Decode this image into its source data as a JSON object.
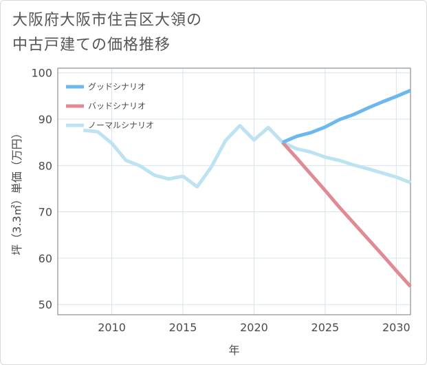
{
  "title": [
    "大阪府大阪市住吉区大領の",
    "中古戸建ての価格推移"
  ],
  "chart_data": {
    "type": "line",
    "xlabel": "年",
    "ylabel": "坪（3.3㎡）単価（万円）",
    "xlim": [
      2006.2,
      2031.0
    ],
    "ylim": [
      47.8,
      101.0
    ],
    "xticks": [
      2010,
      2015,
      2020,
      2025,
      2030
    ],
    "yticks": [
      50,
      60,
      70,
      80,
      90,
      100
    ],
    "grid": true,
    "legend_position": "top-left",
    "series": [
      {
        "name": "グッドシナリオ",
        "color": "#6cb8ee",
        "x": [
          2022,
          2023,
          2024,
          2025,
          2026,
          2027,
          2028,
          2029,
          2030,
          2031
        ],
        "values": [
          85.0,
          86.3,
          87.1,
          88.3,
          89.9,
          91.0,
          92.4,
          93.7,
          94.9,
          96.2
        ]
      },
      {
        "name": "バッドシナリオ",
        "color": "#e08b94",
        "x": [
          2022,
          2023,
          2024,
          2025,
          2026,
          2027,
          2028,
          2029,
          2030,
          2031
        ],
        "values": [
          85.0,
          81.6,
          78.1,
          74.6,
          71.0,
          67.6,
          64.2,
          60.8,
          57.3,
          53.9
        ]
      },
      {
        "name": "ノーマルシナリオ",
        "color": "#bde2f1",
        "x": [
          2008,
          2009,
          2010,
          2011,
          2012,
          2013,
          2014,
          2015,
          2016,
          2017,
          2018,
          2019,
          2020,
          2021,
          2022,
          2023,
          2024,
          2025,
          2026,
          2027,
          2028,
          2029,
          2030,
          2031
        ],
        "values": [
          87.6,
          87.3,
          84.8,
          81.1,
          79.9,
          77.9,
          77.1,
          77.7,
          75.4,
          79.7,
          85.4,
          88.6,
          85.5,
          88.2,
          85.0,
          83.6,
          82.9,
          81.8,
          81.1,
          80.1,
          79.3,
          78.4,
          77.5,
          76.3
        ]
      }
    ]
  }
}
